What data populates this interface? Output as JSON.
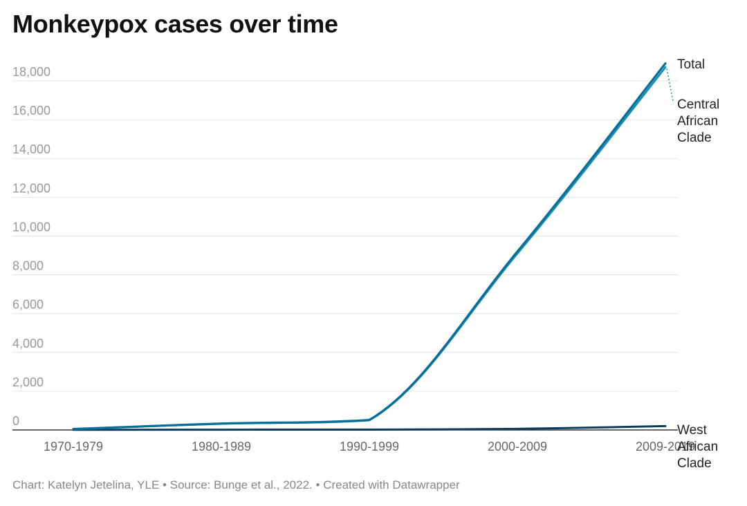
{
  "page": {
    "title": "Monkeypox cases over time",
    "footer": {
      "chart_by": "Chart: Katelyn Jetelina, YLE",
      "source": "Source: Bunge et al., 2022.",
      "created_with": "Created with Datawrapper",
      "separator": "•"
    }
  },
  "chart_data": {
    "type": "line",
    "title": "Monkeypox cases over time",
    "xlabel": "",
    "ylabel": "",
    "categories": [
      "1970-1979",
      "1980-1989",
      "1990-1999",
      "2000-2009",
      "2009-2019"
    ],
    "x_tick_labels": [
      "1970-1979",
      "1980-1989",
      "1990-1999",
      "2000-2009",
      "2009-2019"
    ],
    "y_ticks": [
      0,
      2000,
      4000,
      6000,
      8000,
      10000,
      12000,
      14000,
      16000,
      18000
    ],
    "y_tick_labels": [
      "0",
      "2,000",
      "4,000",
      "6,000",
      "8,000",
      "10,000",
      "12,000",
      "14,000",
      "16,000",
      "18,000"
    ],
    "ylim": [
      0,
      19000
    ],
    "grid": true,
    "series": [
      {
        "name": "Total",
        "label_lines": [
          "Total"
        ],
        "color": "#0b6e99",
        "values": [
          50,
          330,
          520,
          9200,
          18900
        ]
      },
      {
        "name": "Central African Clade",
        "label_lines": [
          "Central",
          "African",
          "Clade"
        ],
        "color": "#1a8fb8",
        "values": [
          45,
          320,
          500,
          9100,
          18700
        ]
      },
      {
        "name": "West African Clade",
        "label_lines": [
          "West",
          "African",
          "Clade"
        ],
        "color": "#0d3b5c",
        "values": [
          10,
          15,
          20,
          60,
          200
        ]
      }
    ]
  }
}
